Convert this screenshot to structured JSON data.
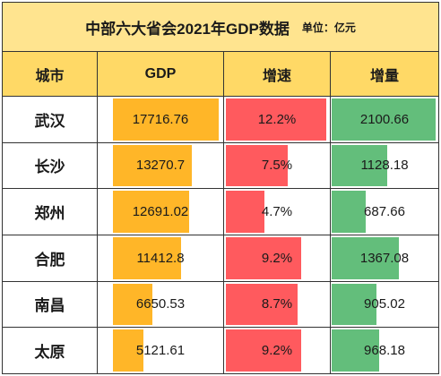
{
  "title": "中部六大省会2021年GDP数据",
  "unit": "单位：亿元",
  "colors": {
    "title_bg": "#FFE48F",
    "header_bg": "#FFD966",
    "gdp": "#FFB628",
    "growth": "#FF5A5E",
    "increment": "#63BE7B"
  },
  "chart_data": {
    "type": "table",
    "title": "中部六大省会2021年GDP数据",
    "columns": [
      "城市",
      "GDP",
      "增速",
      "增量"
    ],
    "rows": [
      {
        "city": "武汉",
        "gdp": 17716.76,
        "growth": "12.2%",
        "increment": 2100.66
      },
      {
        "city": "长沙",
        "gdp": 13270.7,
        "growth": "7.5%",
        "increment": 1128.18
      },
      {
        "city": "郑州",
        "gdp": 12691.02,
        "growth": "4.7%",
        "increment": 687.66
      },
      {
        "city": "合肥",
        "gdp": 11412.8,
        "growth": "9.2%",
        "increment": 1367.08
      },
      {
        "city": "南昌",
        "gdp": 6650.53,
        "growth": "8.7%",
        "increment": 905.02
      },
      {
        "city": "太原",
        "gdp": 5121.61,
        "growth": "9.2%",
        "increment": 968.18
      }
    ]
  }
}
